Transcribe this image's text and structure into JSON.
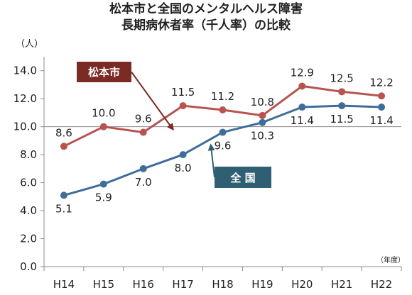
{
  "chart_data": {
    "type": "line",
    "title_lines": [
      "松本市と全国のメンタルヘルス障害",
      "長期病休者率（千人率）の比較"
    ],
    "y_unit_label": "（人）",
    "x_unit_label": "（年度）",
    "categories": [
      "H14",
      "H15",
      "H16",
      "H17",
      "H18",
      "H19",
      "H20",
      "H21",
      "H22"
    ],
    "ylim": [
      0,
      15
    ],
    "yticks": [
      "0.0",
      "2.0",
      "4.0",
      "6.0",
      "8.0",
      "10.0",
      "12.0",
      "14.0"
    ],
    "grid": false,
    "reference_line": 10.0,
    "series": [
      {
        "name": "松本市",
        "color": "#b85450",
        "callout_color": "#7a2b23",
        "labels_position": "above",
        "values": [
          8.6,
          10.0,
          9.6,
          11.5,
          11.2,
          10.8,
          12.9,
          12.5,
          12.2
        ],
        "value_labels": [
          "8.6",
          "10.0",
          "9.6",
          "11.5",
          "11.2",
          "10.8",
          "12.9",
          "12.5",
          "12.2"
        ]
      },
      {
        "name": "全 国",
        "color": "#3f6d9a",
        "callout_color": "#2f5f73",
        "labels_position": "below",
        "values": [
          5.1,
          5.9,
          7.0,
          8.0,
          9.6,
          10.3,
          11.4,
          11.5,
          11.4
        ],
        "value_labels": [
          "5.1",
          "5.9",
          "7.0",
          "8.0",
          "9.6",
          "10.3",
          "11.4",
          "11.5",
          "11.4"
        ]
      }
    ]
  }
}
